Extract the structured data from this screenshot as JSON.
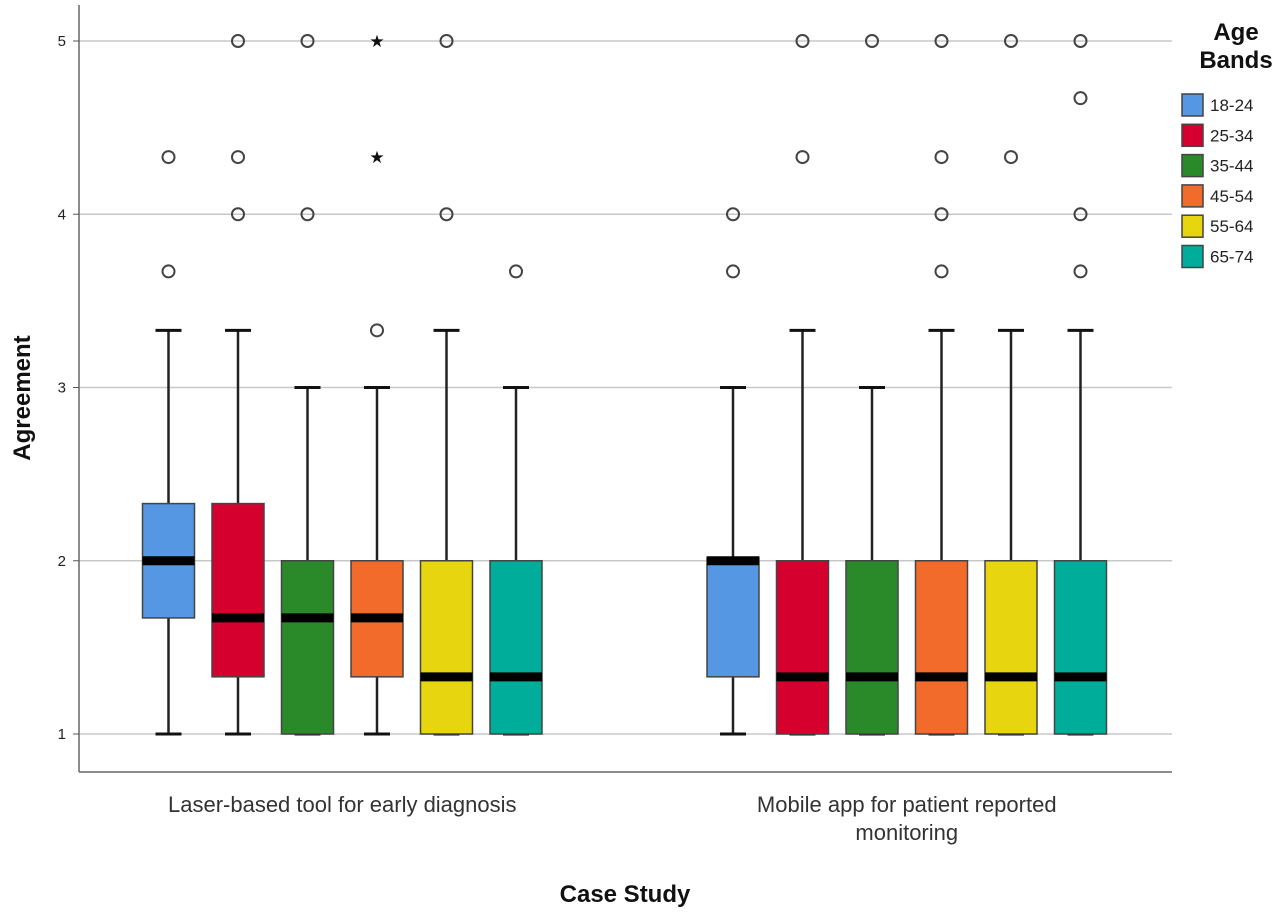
{
  "chart_data": {
    "type": "boxplot",
    "xlabel": "Case Study",
    "ylabel": "Agreement",
    "ylim": [
      0.8,
      5.15
    ],
    "yticks": [
      1,
      2,
      3,
      4,
      5
    ],
    "grid": "horizontal",
    "legend": {
      "title_lines": [
        "Age",
        "Bands"
      ],
      "placement": "top-right",
      "entries": [
        {
          "label": "18-24",
          "color": "#5597e2"
        },
        {
          "label": "25-34",
          "color": "#d6002f"
        },
        {
          "label": "35-44",
          "color": "#2a8a2a"
        },
        {
          "label": "45-54",
          "color": "#f26b2a"
        },
        {
          "label": "55-64",
          "color": "#e6d50f"
        },
        {
          "label": "65-74",
          "color": "#00ad9a"
        }
      ]
    },
    "groups": [
      {
        "category_lines": [
          "Laser-based tool for early diagnosis"
        ],
        "boxes": [
          {
            "band": "18-24",
            "whisker_low": 1,
            "q1": 1.67,
            "median": 2,
            "q3": 2.33,
            "whisker_high": 3.33,
            "outliers": [
              3.67,
              4.33
            ],
            "extremes": []
          },
          {
            "band": "25-34",
            "whisker_low": 1,
            "q1": 1.33,
            "median": 1.67,
            "q3": 2.33,
            "whisker_high": 3.33,
            "outliers": [
              4,
              4.33,
              5
            ],
            "extremes": []
          },
          {
            "band": "35-44",
            "whisker_low": 1,
            "q1": 1,
            "median": 1.67,
            "q3": 2,
            "whisker_high": 3,
            "outliers": [
              4,
              5
            ],
            "extremes": []
          },
          {
            "band": "45-54",
            "whisker_low": 1,
            "q1": 1.33,
            "median": 1.67,
            "q3": 2,
            "whisker_high": 3,
            "outliers": [
              3.33
            ],
            "extremes": [
              4.33,
              5
            ]
          },
          {
            "band": "55-64",
            "whisker_low": 1,
            "q1": 1,
            "median": 1.33,
            "q3": 2,
            "whisker_high": 3.33,
            "outliers": [
              4,
              5
            ],
            "extremes": []
          },
          {
            "band": "65-74",
            "whisker_low": 1,
            "q1": 1,
            "median": 1.33,
            "q3": 2,
            "whisker_high": 3,
            "outliers": [
              3.67
            ],
            "extremes": []
          }
        ]
      },
      {
        "category_lines": [
          "Mobile app for patient reported",
          "monitoring"
        ],
        "boxes": [
          {
            "band": "18-24",
            "whisker_low": 1,
            "q1": 1.33,
            "median": 2,
            "q3": 2.02,
            "whisker_high": 3,
            "outliers": [
              3.67,
              4
            ],
            "extremes": []
          },
          {
            "band": "25-34",
            "whisker_low": 1,
            "q1": 1,
            "median": 1.33,
            "q3": 2,
            "whisker_high": 3.33,
            "outliers": [
              4.33,
              5
            ],
            "extremes": []
          },
          {
            "band": "35-44",
            "whisker_low": 1,
            "q1": 1,
            "median": 1.33,
            "q3": 2,
            "whisker_high": 3,
            "outliers": [
              5
            ],
            "extremes": []
          },
          {
            "band": "45-54",
            "whisker_low": 1,
            "q1": 1,
            "median": 1.33,
            "q3": 2,
            "whisker_high": 3.33,
            "outliers": [
              3.67,
              4,
              4.33,
              5
            ],
            "extremes": []
          },
          {
            "band": "55-64",
            "whisker_low": 1,
            "q1": 1,
            "median": 1.33,
            "q3": 2,
            "whisker_high": 3.33,
            "outliers": [
              4.33,
              5
            ],
            "extremes": []
          },
          {
            "band": "65-74",
            "whisker_low": 1,
            "q1": 1,
            "median": 1.33,
            "q3": 2,
            "whisker_high": 3.33,
            "outliers": [
              3.67,
              4,
              4.67,
              5
            ],
            "extremes": []
          }
        ]
      }
    ]
  }
}
